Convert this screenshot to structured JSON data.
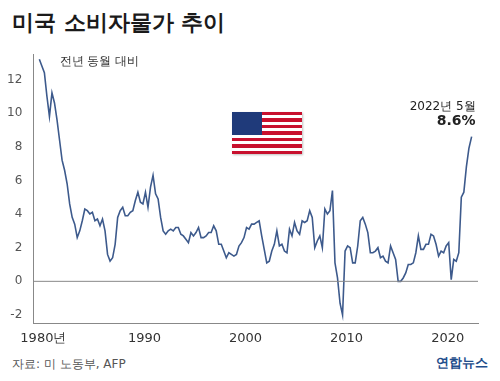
{
  "chart_data": {
    "type": "line",
    "title": "미국 소비자물가 추이",
    "subtitle": "전년 동월 대비",
    "source": "자료: 미 노동부, AFP",
    "credit": "연합뉴스",
    "color": "#3d5a8c",
    "grid": false,
    "xlim": [
      1979,
      2023
    ],
    "xticks": [
      {
        "value": 1980,
        "label": "1980년"
      },
      1990,
      2000,
      2010,
      2020
    ],
    "ylim": [
      -2.5,
      13.5
    ],
    "yticks": [
      -2,
      0,
      2,
      4,
      6,
      8,
      10,
      12
    ],
    "annotations": [
      {
        "x": 2022.37,
        "y": 8.6,
        "text": [
          "2022년 5월",
          "8.6%"
        ]
      }
    ],
    "x": [
      1979.6,
      1979.85,
      1980.1,
      1980.35,
      1980.6,
      1980.85,
      1981.1,
      1981.35,
      1981.6,
      1981.85,
      1982.1,
      1982.35,
      1982.6,
      1982.85,
      1983.1,
      1983.35,
      1983.6,
      1983.85,
      1984.1,
      1984.35,
      1984.6,
      1984.85,
      1985.1,
      1985.35,
      1985.6,
      1985.85,
      1986.1,
      1986.35,
      1986.6,
      1986.85,
      1987.1,
      1987.35,
      1987.6,
      1987.85,
      1988.1,
      1988.35,
      1988.6,
      1988.85,
      1989.1,
      1989.35,
      1989.6,
      1989.85,
      1990.1,
      1990.35,
      1990.6,
      1990.85,
      1991.1,
      1991.35,
      1991.6,
      1991.85,
      1992.1,
      1992.35,
      1992.6,
      1992.85,
      1993.1,
      1993.35,
      1993.6,
      1993.85,
      1994.1,
      1994.35,
      1994.6,
      1994.85,
      1995.1,
      1995.35,
      1995.6,
      1995.85,
      1996.1,
      1996.35,
      1996.6,
      1996.85,
      1997.1,
      1997.35,
      1997.6,
      1997.85,
      1998.1,
      1998.35,
      1998.6,
      1998.85,
      1999.1,
      1999.35,
      1999.6,
      1999.85,
      2000.1,
      2000.35,
      2000.6,
      2000.85,
      2001.1,
      2001.35,
      2001.6,
      2001.85,
      2002.1,
      2002.35,
      2002.6,
      2002.85,
      2003.1,
      2003.35,
      2003.6,
      2003.85,
      2004.1,
      2004.35,
      2004.6,
      2004.85,
      2005.1,
      2005.35,
      2005.6,
      2005.85,
      2006.1,
      2006.35,
      2006.6,
      2006.85,
      2007.1,
      2007.35,
      2007.6,
      2007.85,
      2008.1,
      2008.35,
      2008.6,
      2008.85,
      2009.1,
      2009.35,
      2009.6,
      2009.85,
      2010.1,
      2010.35,
      2010.6,
      2010.85,
      2011.1,
      2011.35,
      2011.6,
      2011.85,
      2012.1,
      2012.35,
      2012.6,
      2012.85,
      2013.1,
      2013.35,
      2013.6,
      2013.85,
      2014.1,
      2014.35,
      2014.6,
      2014.85,
      2015.1,
      2015.35,
      2015.6,
      2015.85,
      2016.1,
      2016.35,
      2016.6,
      2016.85,
      2017.1,
      2017.35,
      2017.6,
      2017.85,
      2018.1,
      2018.35,
      2018.6,
      2018.85,
      2019.1,
      2019.35,
      2019.6,
      2019.85,
      2020.1,
      2020.35,
      2020.6,
      2020.85,
      2021.1,
      2021.35,
      2021.6,
      2021.85,
      2022.1,
      2022.37
    ],
    "values": [
      13.2,
      12.8,
      12.4,
      11.0,
      9.8,
      11.2,
      10.6,
      9.6,
      8.4,
      7.2,
      6.6,
      5.8,
      4.6,
      3.8,
      3.4,
      2.6,
      3.0,
      3.6,
      4.3,
      4.2,
      4.0,
      4.1,
      3.6,
      3.7,
      3.3,
      3.7,
      3.0,
      1.6,
      1.2,
      1.4,
      2.2,
      3.8,
      4.2,
      4.4,
      3.9,
      3.9,
      4.1,
      4.2,
      4.8,
      5.3,
      4.7,
      4.6,
      5.3,
      4.4,
      5.6,
      6.3,
      5.2,
      4.9,
      3.8,
      3.0,
      2.8,
      3.0,
      3.1,
      3.0,
      3.2,
      3.2,
      2.8,
      2.7,
      2.5,
      2.3,
      2.9,
      2.7,
      2.9,
      3.2,
      2.6,
      2.6,
      2.7,
      2.9,
      2.9,
      3.3,
      3.0,
      2.2,
      2.2,
      1.8,
      1.4,
      1.7,
      1.6,
      1.5,
      1.6,
      2.1,
      2.3,
      2.6,
      3.2,
      3.1,
      3.4,
      3.4,
      3.5,
      3.6,
      2.7,
      1.9,
      1.1,
      1.2,
      1.8,
      2.2,
      3.0,
      2.1,
      2.2,
      1.8,
      1.7,
      3.1,
      2.7,
      3.5,
      3.0,
      2.8,
      3.6,
      3.5,
      3.6,
      4.2,
      3.8,
      2.0,
      2.4,
      2.7,
      2.0,
      4.3,
      4.0,
      4.2,
      5.4,
      1.1,
      0.2,
      -1.3,
      -2.0,
      1.8,
      2.1,
      2.0,
      1.1,
      1.1,
      2.1,
      3.6,
      3.8,
      3.4,
      2.9,
      1.7,
      1.7,
      1.8,
      2.0,
      1.4,
      1.5,
      1.2,
      1.1,
      2.1,
      1.7,
      1.3,
      0.0,
      0.0,
      0.2,
      0.5,
      1.0,
      1.0,
      1.1,
      1.7,
      2.7,
      1.9,
      1.9,
      2.2,
      2.2,
      2.8,
      2.7,
      2.2,
      1.5,
      1.8,
      1.7,
      2.1,
      2.3,
      0.1,
      1.3,
      1.2,
      1.7,
      5.0,
      5.3,
      6.8,
      7.9,
      8.6
    ]
  }
}
